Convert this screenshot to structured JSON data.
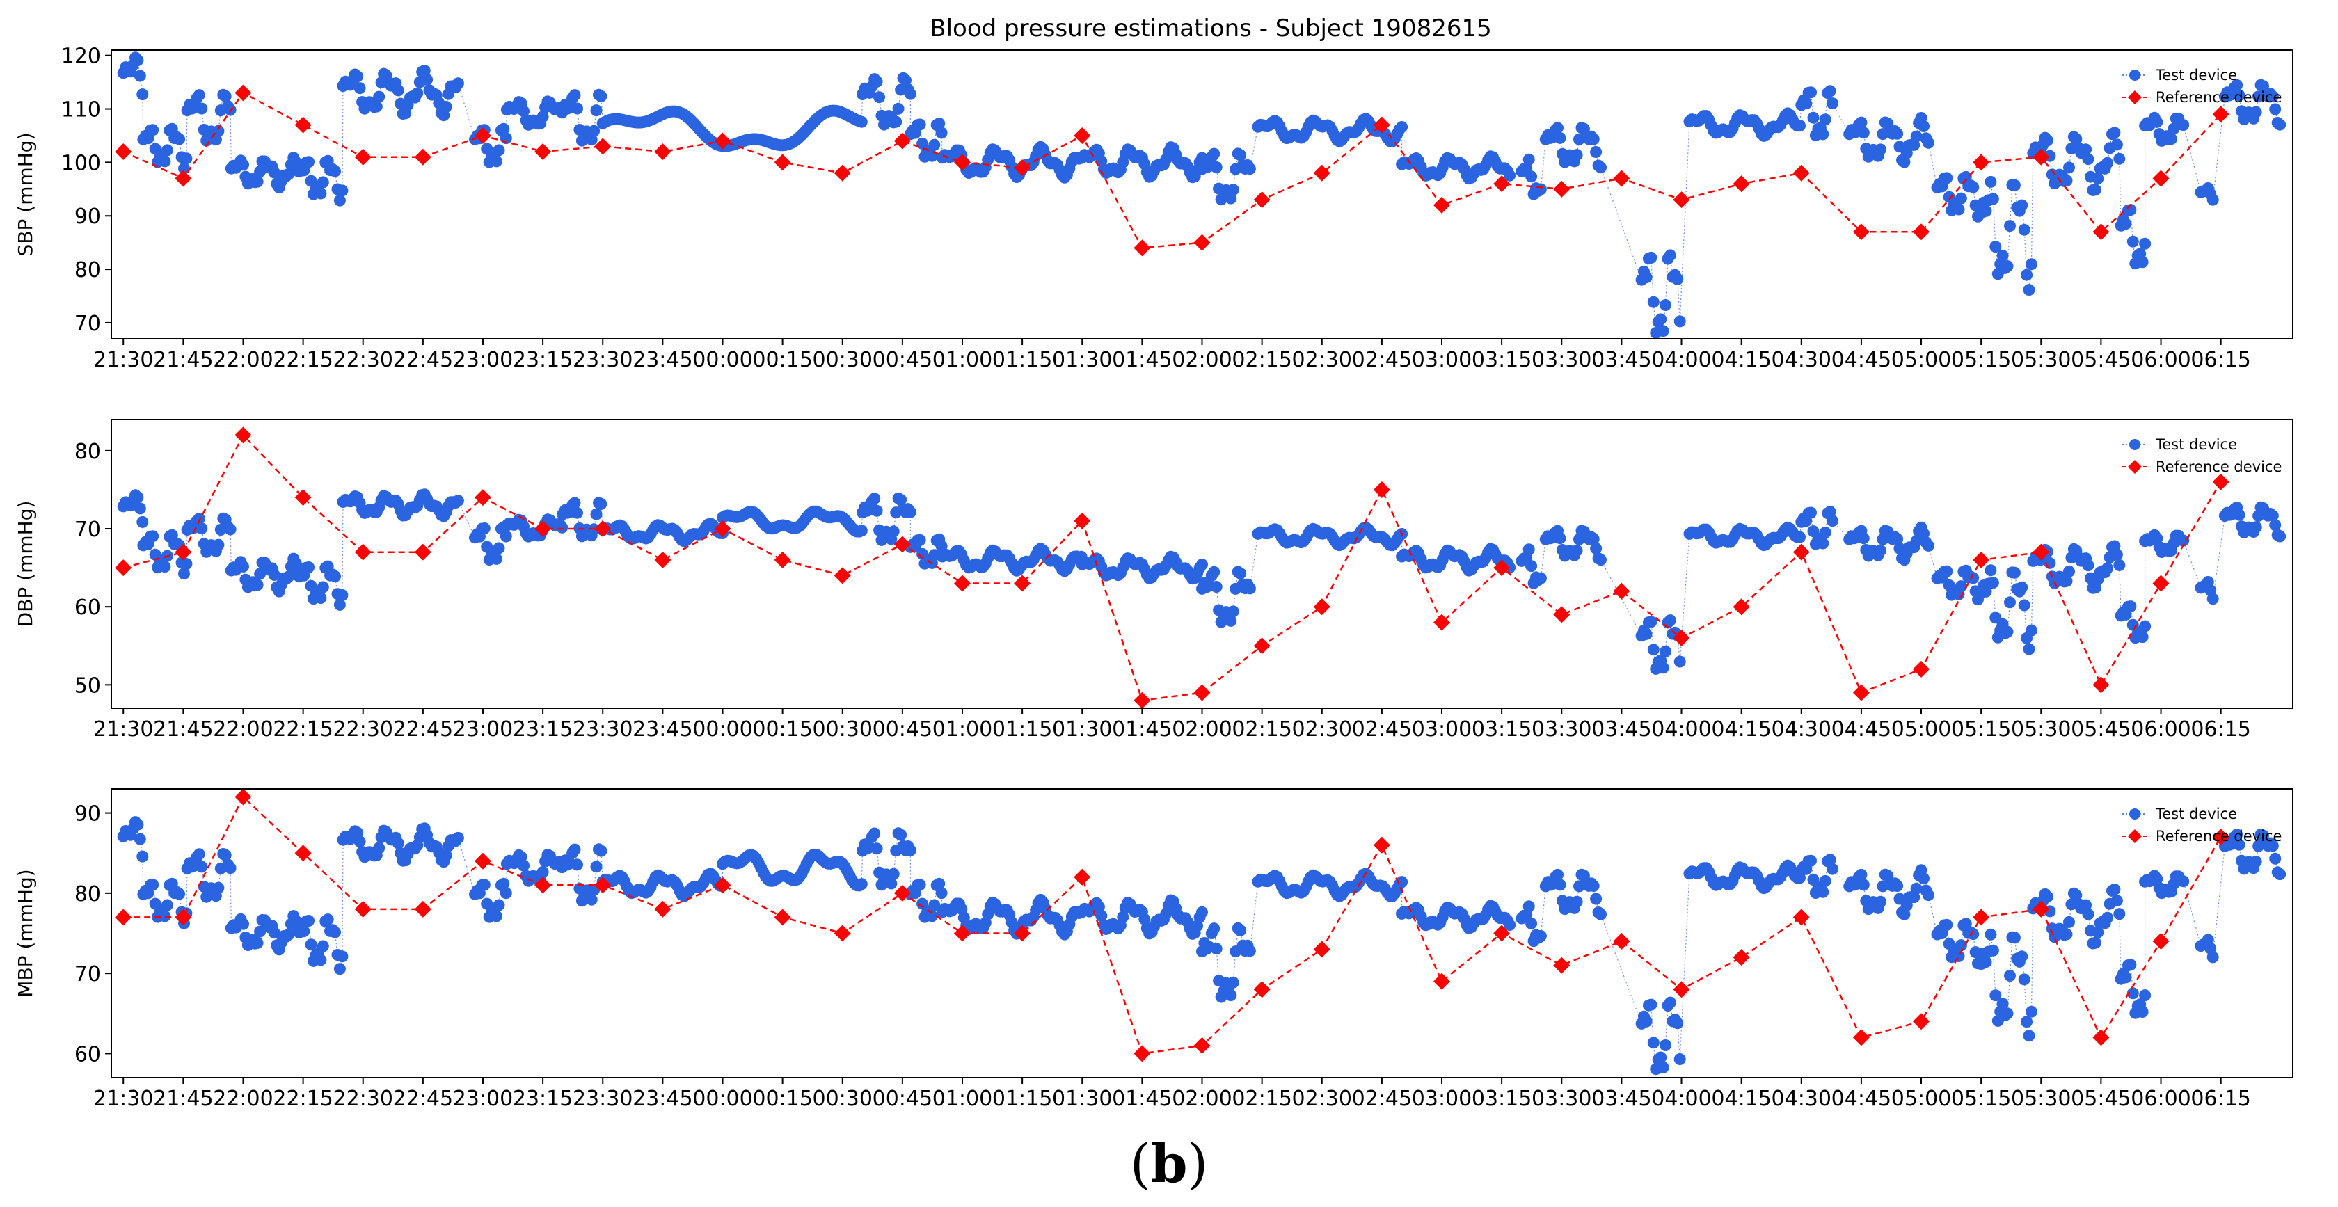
{
  "title": "Blood pressure estimations - Subject 19082615",
  "caption": {
    "open": "(",
    "letter": "b",
    "close": ")"
  },
  "colors": {
    "test": "#2a64e0",
    "reference": "#ff0000",
    "axis": "#000000"
  },
  "chart_data": {
    "type": "scatter",
    "x_tick_labels": [
      "21:30",
      "21:45",
      "22:00",
      "22:15",
      "22:30",
      "22:45",
      "23:00",
      "23:15",
      "23:30",
      "23:45",
      "00:00",
      "00:15",
      "00:30",
      "00:45",
      "01:00",
      "01:15",
      "01:30",
      "01:45",
      "02:00",
      "02:15",
      "02:30",
      "02:45",
      "03:00",
      "03:15",
      "03:30",
      "03:45",
      "04:00",
      "04:15",
      "04:30",
      "04:45",
      "05:00",
      "05:15",
      "05:30",
      "05:45",
      "06:00",
      "06:15"
    ],
    "x_unit": "minutes since 21:30",
    "xlim": [
      -3,
      543
    ],
    "legend": {
      "position": "top-right",
      "test": "Test device",
      "reference": "Reference device"
    },
    "panels": [
      {
        "ylabel": "SBP (mmHg)",
        "ylim": [
          67,
          121
        ],
        "yticks": [
          70,
          80,
          90,
          100,
          110,
          120
        ],
        "reference": {
          "x": [
            0,
            15,
            30,
            45,
            60,
            75,
            90,
            105,
            120,
            135,
            150,
            165,
            180,
            195,
            210,
            225,
            240,
            255,
            270,
            285,
            300,
            315,
            330,
            345,
            360,
            375,
            390,
            405,
            420,
            435,
            450,
            465,
            480,
            495,
            510,
            525
          ],
          "y": [
            102,
            97,
            113,
            107,
            101,
            101,
            105,
            102,
            103,
            102,
            104,
            100,
            98,
            104,
            100,
            99,
            105,
            84,
            85,
            93,
            98,
            107,
            92,
            96,
            95,
            97,
            93,
            96,
            98,
            87,
            87,
            100,
            101,
            87,
            97,
            109
          ]
        },
        "test_segments": [
          {
            "x0": 0,
            "x1": 5,
            "base": 115,
            "amp": 4,
            "period": 9
          },
          {
            "x0": 5,
            "x1": 16,
            "base": 103,
            "amp": 3,
            "period": 6
          },
          {
            "x0": 16,
            "x1": 27,
            "base": 108,
            "amp": 4,
            "period": 8
          },
          {
            "x0": 27,
            "x1": 44,
            "base": 98,
            "amp": 2,
            "period": 7
          },
          {
            "x0": 44,
            "x1": 55,
            "base": 97,
            "amp": 3,
            "period": 6
          },
          {
            "x0": 55,
            "x1": 84,
            "base": 113,
            "amp": 3,
            "period": 9
          },
          {
            "x0": 88,
            "x1": 96,
            "base": 103,
            "amp": 3,
            "period": 6
          },
          {
            "x0": 96,
            "x1": 110,
            "base": 109,
            "amp": 2,
            "period": 9
          },
          {
            "x0": 110,
            "x1": 120,
            "base": 108,
            "amp": 4,
            "period": 8
          },
          {
            "x0": 120,
            "x1": 185,
            "base": 106,
            "amp": 3,
            "period": 50
          },
          {
            "x0": 185,
            "x1": 197,
            "base": 111,
            "amp": 4,
            "period": 9
          },
          {
            "x0": 197,
            "x1": 205,
            "base": 104,
            "amp": 3,
            "period": 6
          },
          {
            "x0": 205,
            "x1": 240,
            "base": 100,
            "amp": 2,
            "period": 11
          },
          {
            "x0": 240,
            "x1": 270,
            "base": 100,
            "amp": 2,
            "period": 10
          },
          {
            "x0": 270,
            "x1": 282,
            "base": 97,
            "amp": 4,
            "period": 8
          },
          {
            "x0": 284,
            "x1": 320,
            "base": 106,
            "amp": 1.5,
            "period": 12
          },
          {
            "x0": 320,
            "x1": 347,
            "base": 99,
            "amp": 1.5,
            "period": 10
          },
          {
            "x0": 350,
            "x1": 355,
            "base": 97,
            "amp": 3,
            "period": 5
          },
          {
            "x0": 356,
            "x1": 370,
            "base": 103,
            "amp": 3,
            "period": 8
          },
          {
            "x0": 380,
            "x1": 390,
            "base": 75,
            "amp": 7,
            "period": 6
          },
          {
            "x0": 392,
            "x1": 420,
            "base": 107,
            "amp": 1.5,
            "period": 11
          },
          {
            "x0": 420,
            "x1": 428,
            "base": 109,
            "amp": 4,
            "period": 6
          },
          {
            "x0": 432,
            "x1": 452,
            "base": 104,
            "amp": 3,
            "period": 8
          },
          {
            "x0": 454,
            "x1": 465,
            "base": 94,
            "amp": 3,
            "period": 6
          },
          {
            "x0": 465,
            "x1": 478,
            "base": 87,
            "amp": 8,
            "period": 7
          },
          {
            "x0": 478,
            "x1": 500,
            "base": 100,
            "amp": 4,
            "period": 9
          },
          {
            "x0": 500,
            "x1": 506,
            "base": 86,
            "amp": 5,
            "period": 6
          },
          {
            "x0": 506,
            "x1": 516,
            "base": 106,
            "amp": 2,
            "period": 7
          },
          {
            "x0": 520,
            "x1": 523,
            "base": 94,
            "amp": 1,
            "period": 5
          },
          {
            "x0": 526,
            "x1": 540,
            "base": 111,
            "amp": 3,
            "period": 8
          }
        ]
      },
      {
        "ylabel": "DBP (mmHg)",
        "ylim": [
          47,
          84
        ],
        "yticks": [
          50,
          60,
          70,
          80
        ],
        "reference": {
          "x": [
            0,
            15,
            30,
            45,
            60,
            75,
            90,
            105,
            120,
            135,
            150,
            165,
            180,
            195,
            210,
            225,
            240,
            255,
            270,
            285,
            300,
            315,
            330,
            345,
            360,
            375,
            390,
            405,
            420,
            435,
            450,
            465,
            480,
            495,
            510,
            525
          ],
          "y": [
            65,
            67,
            82,
            74,
            67,
            67,
            74,
            70,
            70,
            66,
            70,
            66,
            64,
            68,
            63,
            63,
            71,
            48,
            49,
            55,
            60,
            75,
            58,
            65,
            59,
            62,
            56,
            60,
            67,
            49,
            52,
            66,
            67,
            50,
            63,
            76
          ]
        },
        "test_segments": [
          {
            "x0": 0,
            "x1": 5,
            "base": 72,
            "amp": 2,
            "period": 9
          },
          {
            "x0": 5,
            "x1": 16,
            "base": 67,
            "amp": 2,
            "period": 6
          },
          {
            "x0": 16,
            "x1": 27,
            "base": 69,
            "amp": 2,
            "period": 8
          },
          {
            "x0": 27,
            "x1": 44,
            "base": 64,
            "amp": 1.5,
            "period": 7
          },
          {
            "x0": 44,
            "x1": 55,
            "base": 63,
            "amp": 2,
            "period": 6
          },
          {
            "x0": 55,
            "x1": 84,
            "base": 73,
            "amp": 1,
            "period": 9
          },
          {
            "x0": 88,
            "x1": 96,
            "base": 68,
            "amp": 2,
            "period": 6
          },
          {
            "x0": 96,
            "x1": 110,
            "base": 70,
            "amp": 1,
            "period": 9
          },
          {
            "x0": 110,
            "x1": 120,
            "base": 71,
            "amp": 2,
            "period": 8
          },
          {
            "x0": 120,
            "x1": 150,
            "base": 69.5,
            "amp": 0.8,
            "period": 12
          },
          {
            "x0": 150,
            "x1": 185,
            "base": 71,
            "amp": 1,
            "period": 20
          },
          {
            "x0": 185,
            "x1": 197,
            "base": 71,
            "amp": 2.5,
            "period": 8
          },
          {
            "x0": 197,
            "x1": 205,
            "base": 67,
            "amp": 1.5,
            "period": 6
          },
          {
            "x0": 205,
            "x1": 240,
            "base": 66,
            "amp": 1,
            "period": 11
          },
          {
            "x0": 240,
            "x1": 270,
            "base": 65,
            "amp": 1,
            "period": 10
          },
          {
            "x0": 270,
            "x1": 282,
            "base": 61,
            "amp": 3,
            "period": 8
          },
          {
            "x0": 284,
            "x1": 320,
            "base": 69,
            "amp": 0.8,
            "period": 12
          },
          {
            "x0": 320,
            "x1": 347,
            "base": 66,
            "amp": 1,
            "period": 10
          },
          {
            "x0": 350,
            "x1": 355,
            "base": 65,
            "amp": 2,
            "period": 5
          },
          {
            "x0": 356,
            "x1": 370,
            "base": 68,
            "amp": 1.5,
            "period": 8
          },
          {
            "x0": 380,
            "x1": 390,
            "base": 55,
            "amp": 3,
            "period": 6
          },
          {
            "x0": 392,
            "x1": 420,
            "base": 69,
            "amp": 0.8,
            "period": 11
          },
          {
            "x0": 420,
            "x1": 428,
            "base": 70,
            "amp": 2,
            "period": 6
          },
          {
            "x0": 432,
            "x1": 452,
            "base": 68,
            "amp": 1.5,
            "period": 8
          },
          {
            "x0": 454,
            "x1": 465,
            "base": 63,
            "amp": 1.5,
            "period": 6
          },
          {
            "x0": 465,
            "x1": 478,
            "base": 60,
            "amp": 4,
            "period": 7
          },
          {
            "x0": 478,
            "x1": 500,
            "base": 65,
            "amp": 2,
            "period": 9
          },
          {
            "x0": 500,
            "x1": 506,
            "base": 58,
            "amp": 2,
            "period": 6
          },
          {
            "x0": 506,
            "x1": 516,
            "base": 68,
            "amp": 1,
            "period": 7
          },
          {
            "x0": 520,
            "x1": 523,
            "base": 62,
            "amp": 1,
            "period": 5
          },
          {
            "x0": 526,
            "x1": 540,
            "base": 71,
            "amp": 1.5,
            "period": 8
          }
        ]
      },
      {
        "ylabel": "MBP (mmHg)",
        "ylim": [
          57,
          93
        ],
        "yticks": [
          60,
          70,
          80,
          90
        ],
        "reference": {
          "x": [
            0,
            15,
            30,
            45,
            60,
            75,
            90,
            105,
            120,
            135,
            150,
            165,
            180,
            195,
            210,
            225,
            240,
            255,
            270,
            285,
            300,
            315,
            330,
            345,
            360,
            375,
            390,
            405,
            420,
            435,
            450,
            465,
            480,
            495,
            510,
            525
          ],
          "y": [
            77,
            77,
            92,
            85,
            78,
            78,
            84,
            81,
            81,
            78,
            81,
            77,
            75,
            80,
            75,
            75,
            82,
            60,
            61,
            68,
            73,
            86,
            69,
            75,
            71,
            74,
            68,
            72,
            77,
            62,
            64,
            77,
            78,
            62,
            74,
            87
          ]
        },
        "test_segments": [
          {
            "x0": 0,
            "x1": 5,
            "base": 86,
            "amp": 2.5,
            "period": 9
          },
          {
            "x0": 5,
            "x1": 16,
            "base": 79,
            "amp": 2,
            "period": 6
          },
          {
            "x0": 16,
            "x1": 27,
            "base": 82,
            "amp": 2.5,
            "period": 8
          },
          {
            "x0": 27,
            "x1": 44,
            "base": 75,
            "amp": 1.5,
            "period": 7
          },
          {
            "x0": 44,
            "x1": 55,
            "base": 74,
            "amp": 2.5,
            "period": 6
          },
          {
            "x0": 55,
            "x1": 84,
            "base": 86,
            "amp": 1.5,
            "period": 9
          },
          {
            "x0": 88,
            "x1": 96,
            "base": 79,
            "amp": 2,
            "period": 6
          },
          {
            "x0": 96,
            "x1": 110,
            "base": 83,
            "amp": 1.5,
            "period": 9
          },
          {
            "x0": 110,
            "x1": 120,
            "base": 82,
            "amp": 3,
            "period": 8
          },
          {
            "x0": 120,
            "x1": 150,
            "base": 81,
            "amp": 1,
            "period": 12
          },
          {
            "x0": 150,
            "x1": 185,
            "base": 83,
            "amp": 1.5,
            "period": 20
          },
          {
            "x0": 185,
            "x1": 197,
            "base": 84,
            "amp": 3,
            "period": 8
          },
          {
            "x0": 197,
            "x1": 205,
            "base": 79,
            "amp": 2,
            "period": 6
          },
          {
            "x0": 205,
            "x1": 240,
            "base": 77,
            "amp": 1.5,
            "period": 11
          },
          {
            "x0": 240,
            "x1": 270,
            "base": 77,
            "amp": 1.5,
            "period": 10
          },
          {
            "x0": 270,
            "x1": 282,
            "base": 71,
            "amp": 4,
            "period": 8
          },
          {
            "x0": 284,
            "x1": 320,
            "base": 81,
            "amp": 1,
            "period": 12
          },
          {
            "x0": 320,
            "x1": 347,
            "base": 77,
            "amp": 1,
            "period": 10
          },
          {
            "x0": 350,
            "x1": 355,
            "base": 76,
            "amp": 2,
            "period": 5
          },
          {
            "x0": 356,
            "x1": 370,
            "base": 80,
            "amp": 2,
            "period": 8
          },
          {
            "x0": 380,
            "x1": 390,
            "base": 62,
            "amp": 4,
            "period": 6
          },
          {
            "x0": 392,
            "x1": 420,
            "base": 82,
            "amp": 1,
            "period": 11
          },
          {
            "x0": 420,
            "x1": 428,
            "base": 82,
            "amp": 2,
            "period": 6
          },
          {
            "x0": 432,
            "x1": 452,
            "base": 80,
            "amp": 2,
            "period": 8
          },
          {
            "x0": 454,
            "x1": 465,
            "base": 74,
            "amp": 2,
            "period": 6
          },
          {
            "x0": 465,
            "x1": 478,
            "base": 69,
            "amp": 5,
            "period": 7
          },
          {
            "x0": 478,
            "x1": 500,
            "base": 77,
            "amp": 2.5,
            "period": 9
          },
          {
            "x0": 500,
            "x1": 506,
            "base": 68,
            "amp": 3,
            "period": 6
          },
          {
            "x0": 506,
            "x1": 516,
            "base": 81,
            "amp": 1,
            "period": 7
          },
          {
            "x0": 520,
            "x1": 523,
            "base": 73,
            "amp": 1,
            "period": 5
          },
          {
            "x0": 526,
            "x1": 540,
            "base": 85,
            "amp": 2,
            "period": 8
          }
        ]
      }
    ]
  }
}
